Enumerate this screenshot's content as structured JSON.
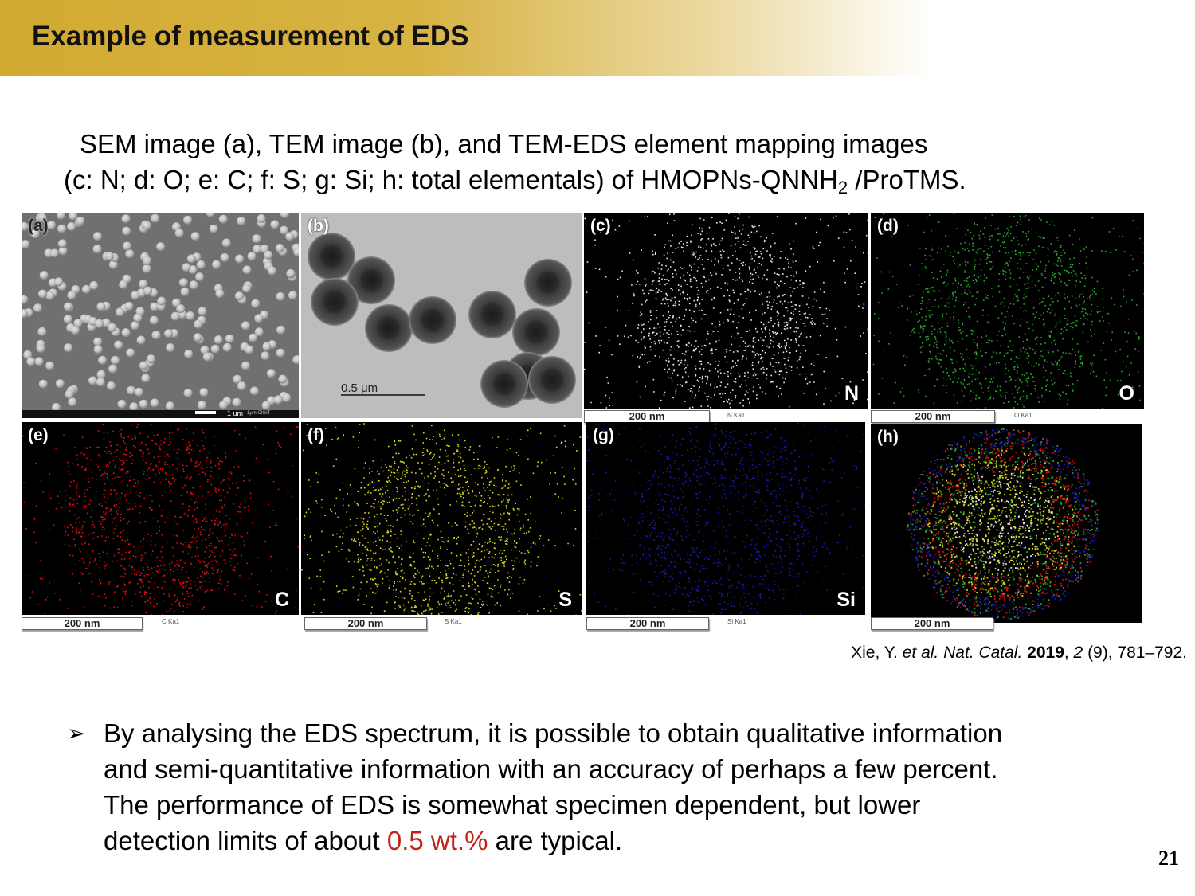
{
  "header": {
    "title": "Example of measurement of EDS"
  },
  "caption": {
    "line1": "SEM image (a), TEM image (b), and TEM-EDS element mapping images",
    "line2_prefix": "(c: N; d: O; e: C; f: S; g: Si; h: total elementals) of HMOPNs-QNNH",
    "line2_sub": "2",
    "line2_suffix": " /ProTMS."
  },
  "figure": {
    "panels": [
      {
        "label": "(a)",
        "scale": "1 um",
        "scale_extra": "1μm  CIGIT"
      },
      {
        "label": "(b)",
        "scale": "0.5 μm"
      },
      {
        "label": "(c)",
        "element": "N",
        "scale": "200 nm",
        "ka": "N Ka1",
        "color": "#e8e8e8"
      },
      {
        "label": "(d)",
        "element": "O",
        "scale": "200 nm",
        "ka": "O Ka1",
        "color": "#2aa82a"
      },
      {
        "label": "(e)",
        "element": "C",
        "scale": "200 nm",
        "ka": "C Ka1",
        "color": "#e01010"
      },
      {
        "label": "(f)",
        "element": "S",
        "scale": "200 nm",
        "ka": "S Ka1",
        "color": "#d8d81c"
      },
      {
        "label": "(g)",
        "element": "Si",
        "scale": "200 nm",
        "ka": "Si Ka1",
        "color": "#1a1aa8"
      },
      {
        "label": "(h)",
        "scale": "200 nm"
      }
    ]
  },
  "reference": {
    "authors": "Xie, Y. ",
    "etal_journal": "et al. Nat. Catal.",
    "year": "2019",
    "volume": "2",
    "pages": " (9), 781–792."
  },
  "bullet": {
    "marker": "➢",
    "line1": " By analysing the EDS spectrum, it is possible to obtain qualitative information",
    "line2": "and semi-quantitative information with an accuracy of perhaps a few percent.",
    "line3": "The performance of EDS is somewhat specimen dependent, but lower",
    "line4_prefix": "detection limits of about ",
    "line4_highlight": "0.5 wt.%",
    "line4_suffix": " are typical."
  },
  "page_number": "21"
}
